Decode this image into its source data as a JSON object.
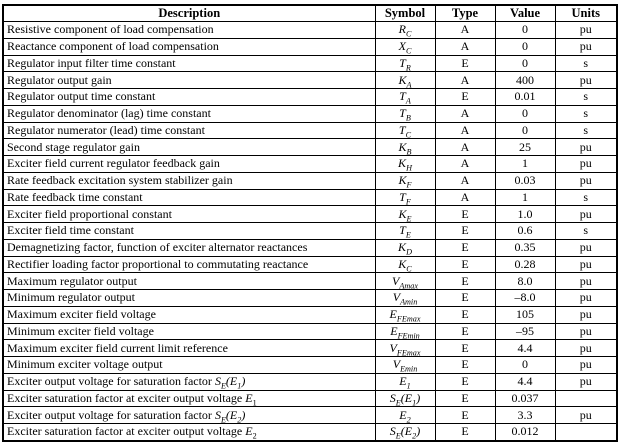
{
  "table": {
    "columns": [
      "Description",
      "Symbol",
      "Type",
      "Value",
      "Units"
    ],
    "rows": [
      {
        "description": "Resistive component of load compensation",
        "symbol": "R<sub>C</sub>",
        "type": "A",
        "value": "0",
        "units": "pu"
      },
      {
        "description": "Reactance component of load compensation",
        "symbol": "X<sub>C</sub>",
        "type": "A",
        "value": "0",
        "units": "pu"
      },
      {
        "description": "Regulator input filter time constant",
        "symbol": "T<sub>R</sub>",
        "type": "E",
        "value": "0",
        "units": "s"
      },
      {
        "description": "Regulator output gain",
        "symbol": "K<sub>A</sub>",
        "type": "A",
        "value": "400",
        "units": "pu"
      },
      {
        "description": "Regulator output time constant",
        "symbol": "T<sub>A</sub>",
        "type": "E",
        "value": "0.01",
        "units": "s"
      },
      {
        "description": "Regulator denominator (lag) time constant",
        "symbol": "T<sub>B</sub>",
        "type": "A",
        "value": "0",
        "units": "s"
      },
      {
        "description": "Regulator numerator (lead) time constant",
        "symbol": "T<sub>C</sub>",
        "type": "A",
        "value": "0",
        "units": "s"
      },
      {
        "description": "Second stage regulator gain",
        "symbol": "K<sub>B</sub>",
        "type": "A",
        "value": "25",
        "units": "pu"
      },
      {
        "description": "Exciter field current regulator feedback gain",
        "symbol": "K<sub>H</sub>",
        "type": "A",
        "value": "1",
        "units": "pu"
      },
      {
        "description": "Rate feedback excitation system stabilizer gain",
        "symbol": "K<sub>F</sub>",
        "type": "A",
        "value": "0.03",
        "units": "pu"
      },
      {
        "description": "Rate feedback time constant",
        "symbol": "T<sub>F</sub>",
        "type": "A",
        "value": "1",
        "units": "s"
      },
      {
        "description": "Exciter field proportional constant",
        "symbol": "K<sub>E</sub>",
        "type": "E",
        "value": "1.0",
        "units": "pu"
      },
      {
        "description": "Exciter field time constant",
        "symbol": "T<sub>E</sub>",
        "type": "E",
        "value": "0.6",
        "units": "s"
      },
      {
        "description": "Demagnetizing factor, function of exciter alternator reactances",
        "symbol": "K<sub>D</sub>",
        "type": "E",
        "value": "0.35",
        "units": "pu"
      },
      {
        "description": "Rectifier loading factor proportional to commutating reactance",
        "symbol": "K<sub>C</sub>",
        "type": "E",
        "value": "0.28",
        "units": "pu"
      },
      {
        "description": "Maximum regulator output",
        "symbol": "V<sub>Amax</sub>",
        "type": "E",
        "value": "8.0",
        "units": "pu"
      },
      {
        "description": "Minimum regulator output",
        "symbol": "V<sub>Amin</sub>",
        "type": "E",
        "value": "–8.0",
        "units": "pu"
      },
      {
        "description": "Maximum exciter field voltage",
        "symbol": "E<sub>FEmax</sub>",
        "type": "E",
        "value": "105",
        "units": "pu"
      },
      {
        "description": "Minimum exciter field voltage",
        "symbol": "E<sub>FEmin</sub>",
        "type": "E",
        "value": "–95",
        "units": "pu"
      },
      {
        "description": "Maximum exciter field current limit reference",
        "symbol": "V<sub>FEmax</sub>",
        "type": "E",
        "value": "4.4",
        "units": "pu"
      },
      {
        "description": "Minimum exciter voltage output",
        "symbol": "V<sub>Emin</sub>",
        "type": "E",
        "value": "0",
        "units": "pu"
      },
      {
        "description": "Exciter output voltage for saturation factor <i>S<sub>E</sub>(E<sub>1</sub>)</i>",
        "symbol": "E<sub>1</sub>",
        "type": "E",
        "value": "4.4",
        "units": "pu"
      },
      {
        "description": "Exciter saturation factor at exciter output voltage <i>E</i><sub>1</sub>",
        "symbol": "S<sub>E</sub>(E<sub>1</sub>)",
        "type": "E",
        "value": "0.037",
        "units": ""
      },
      {
        "description": "Exciter output voltage for saturation factor <i>S<sub>E</sub>(E<sub>2</sub>)</i>",
        "symbol": "E<sub>2</sub>",
        "type": "E",
        "value": "3.3",
        "units": "pu"
      },
      {
        "description": "Exciter saturation factor at exciter output voltage <i>E</i><sub>2</sub>",
        "symbol": "S<sub>E</sub>(E<sub>2</sub>)",
        "type": "E",
        "value": "0.012",
        "units": ""
      }
    ]
  }
}
